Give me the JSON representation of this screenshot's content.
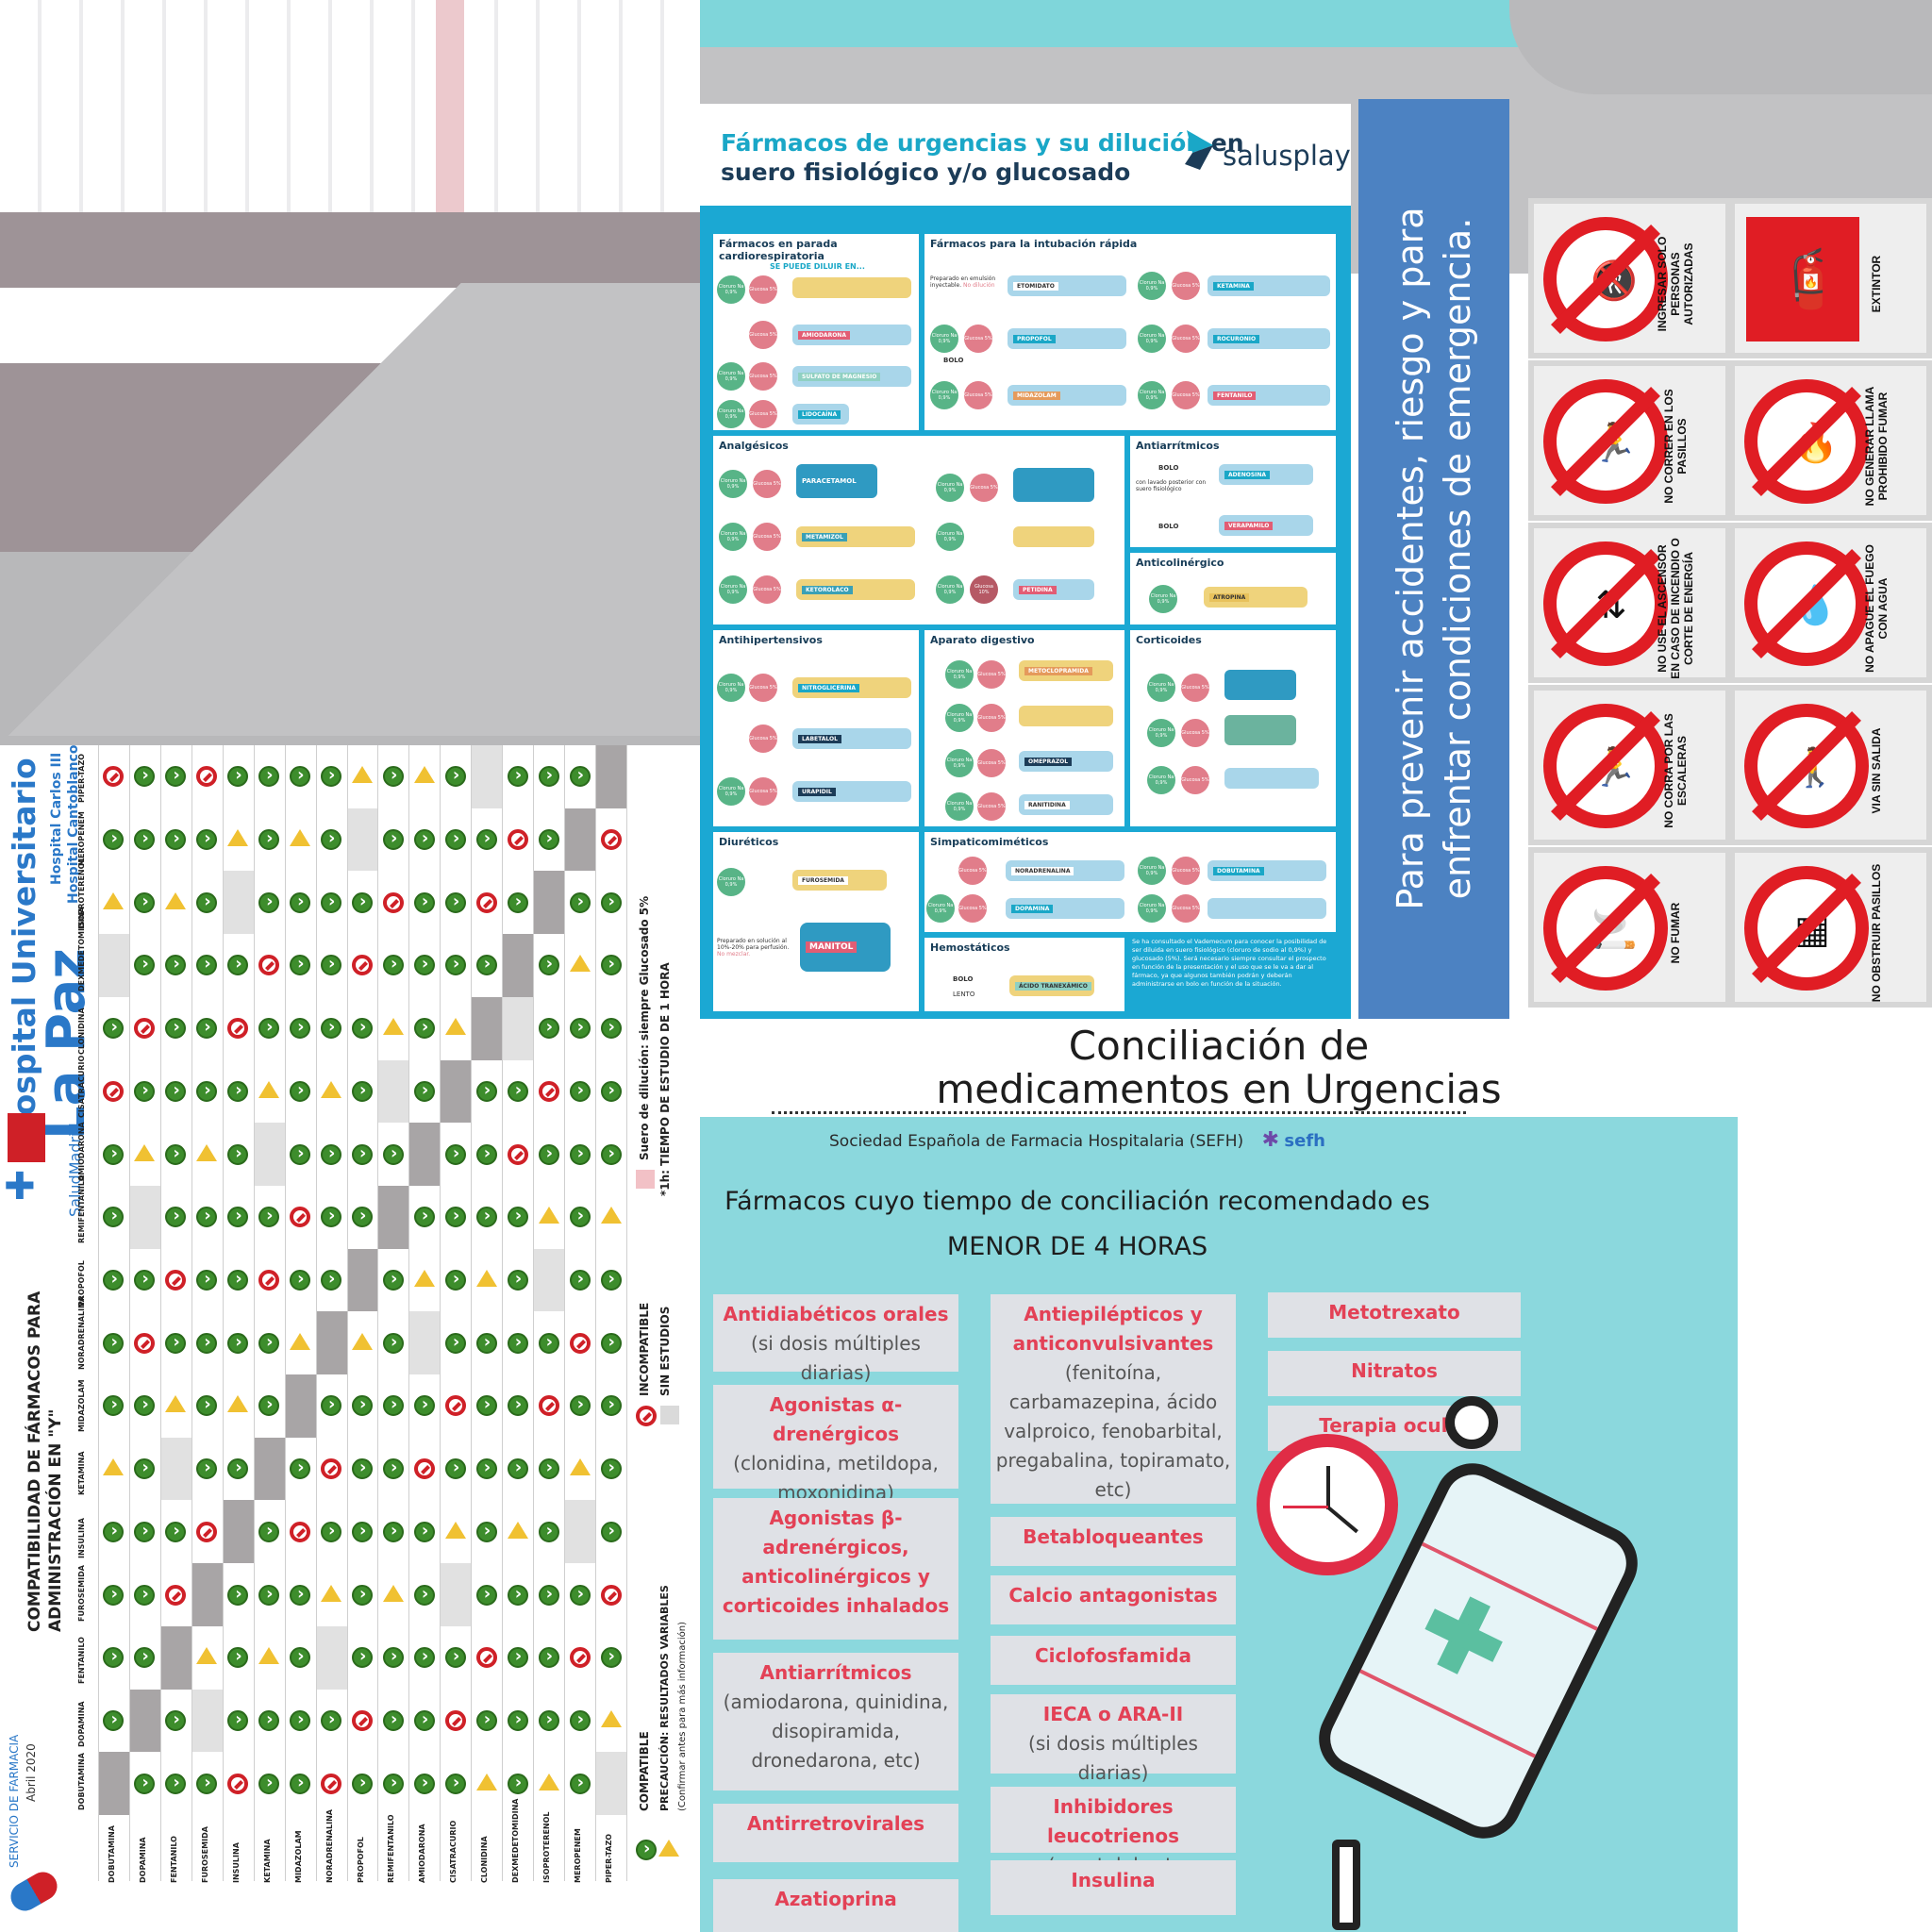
{
  "salusplay": {
    "title_part1": "Fármacos de urgencias y su dilución",
    "title_part2": " en",
    "title_line2": "suero fisiológico y/o glucosado",
    "logo": "salusplay",
    "sections": {
      "parada": "Fármacos en parada cardiorespiratoria",
      "parada_sub": "SE PUEDE DILUIR EN...",
      "intubacion": "Fármacos para la intubación rápida",
      "analgesicos": "Analgésicos",
      "antiarritmicos": "Antiarrítmicos",
      "anticolinergico": "Anticolinérgico",
      "antihipertensivos": "Antihipertensivos",
      "digestivo": "Aparato digestivo",
      "corticoides": "Corticoides",
      "diureticos": "Diuréticos",
      "simpaticomimeticos": "Simpaticomiméticos",
      "hemostaticos": "Hemostáticos"
    },
    "drugs": {
      "amiodarona": "AMIODARONA",
      "magnesio": "SULFATO DE MAGNESIO",
      "lidocaina": "LIDOCAÍNA",
      "etomidato": "ETOMIDATO",
      "ketamina": "KETAMINA",
      "propofol": "PROPOFOL",
      "rocuronio": "ROCURONIO",
      "midazolam": "MIDAZOLAM",
      "fentanilo": "FENTANILO",
      "paracetamol": "PARACETAMOL",
      "metamizol": "METAMIZOL",
      "ketorolaco": "KETOROLACO",
      "petidina": "PETIDINA",
      "adenosina": "ADENOSINA",
      "verapamilo": "VERAPAMILO",
      "atropina": "ATROPINA",
      "nitroglicerina": "NITROGLICERINA",
      "labetalol": "LABETALOL",
      "urapidil": "URAPIDIL",
      "metoclopramida": "METOCLOPRAMIDA",
      "omeprazol": "OMEPRAZOL",
      "ranitidina": "RANITIDINA",
      "furosemida": "FUROSEMIDA",
      "manitol": "MANITOL",
      "noradrenalina": "NORADRENALINA",
      "dobutamina": "DOBUTAMINA",
      "dopamina": "DOPAMINA",
      "tranexamico": "ÁCIDO TRANEXÁMICO"
    },
    "labels": {
      "cloruro": "Cloruro Na 0,9%",
      "glucosa": "Glucosa 5%",
      "glucosa10": "Glucosa 10%",
      "bolo": "BOLO",
      "lento": "LENTO",
      "emulsion": "Preparado en emulsión inyectable.",
      "no_dilucion": "No dilución",
      "lavado": "con lavado posterior con suero fisiológico",
      "manitol_note": "Preparado en solución al 10%-20% para perfusión.",
      "no_mezclar": "No mezclar.",
      "footnote": "Se ha consultado el Vademecum para conocer la posibilidad de ser diluida en suero fisiológico (cloruro de sodio al 0,9%) y glucosado (5%). Será necesario siempre consultar el prospecto en función de la presentación y el uso que se le va a dar al fármaco, ya que algunos también podrán y deberán administrarse en bolo en función de la situación."
    }
  },
  "banner": {
    "text": "Para prevenir accidentes, riesgo y para enfrentar condiciones de emergencia."
  },
  "signs": [
    {
      "label": "INGRESAR SOLO PERSONAS AUTORIZADAS",
      "glyph": "🚷"
    },
    {
      "label": "EXTINTOR",
      "glyph": "🧯"
    },
    {
      "label": "NO CORRER EN LOS PASILLOS",
      "glyph": "🏃"
    },
    {
      "label": "NO GENERAR LLAMA PROHIBIDO FUMAR",
      "glyph": "🔥"
    },
    {
      "label": "NO USE EL ASCENSOR EN CASO DE INCENDIO O CORTE DE ENERGÍA",
      "glyph": "⇅"
    },
    {
      "label": "NO APAGUE EL FUEGO CON AGUA",
      "glyph": "💧"
    },
    {
      "label": "NO CORRA POR LAS ESCALERAS",
      "glyph": "🏃"
    },
    {
      "label": "VIA SIN SALIDA",
      "glyph": "🚶"
    },
    {
      "label": "NO FUMAR",
      "glyph": "🚬"
    },
    {
      "label": "NO OBSTRUIR PASILLOS",
      "glyph": "▦"
    }
  ],
  "lapaz": {
    "hospital": "Hospital Universitario",
    "name": "La Paz",
    "sub1": "Hospital Carlos III",
    "sub2": "Hospital Cantoblanco",
    "salud": "SaludMadrid",
    "title_line1": "COMPATIBILIDAD DE FÁRMACOS PARA",
    "title_line2": "ADMINISTRACIÓN EN \"Y\"",
    "servicio": "SERVICIO DE FARMACIA",
    "fecha": "Abril 2020",
    "drugs": [
      "DOBUTAMINA",
      "DOPAMINA",
      "FENTANILO",
      "FUROSEMIDA",
      "INSULINA",
      "KETAMINA",
      "MIDAZOLAM",
      "NORADRENALINA",
      "PROPOFOL",
      "REMIFENTANILO",
      "AMIODARONA",
      "CISATRACURIO",
      "CLONIDINA",
      "DEXMEDETOMIDINA",
      "ISOPROTERENOL",
      "MEROPENEM",
      "PIPER-TAZO"
    ],
    "legend": {
      "dilucion": "Suero de dilución: siempre Glucosado 5%",
      "tiempo": "*1h: TIEMPO DE ESTUDIO DE 1 HORA",
      "incompatible": "INCOMPATIBLE",
      "sin_estudios": "SIN ESTUDIOS",
      "compatible": "COMPATIBLE",
      "precaucion": "PRECAUCIÓN: RESULTADOS VARIABLES",
      "confirmar": "(Confirmar antes para más información)"
    },
    "h1": "1h*"
  },
  "conciliacion": {
    "title": "Conciliación de medicamentos en Urgencias",
    "society": "Sociedad Española de Farmacia Hospitalaria (SEFH)",
    "sefh": "sefh",
    "lead1": "Fármacos cuyo tiempo de conciliación recomendado es",
    "lead2": "MENOR DE 4 HORAS",
    "col1": [
      {
        "t": "Antidiabéticos orales",
        "d": "(si dosis múltiples diarias)"
      },
      {
        "t": "Agonistas α-drenérgicos",
        "d": "(clonidina, metildopa, moxonidina)"
      },
      {
        "t": "Agonistas β-adrenérgicos, anticolinérgicos y corticoides inhalados",
        "d": ""
      },
      {
        "t": "Antiarrítmicos",
        "d": "(amiodarona, quinidina, disopiramida, dronedarona, etc)"
      },
      {
        "t": "Antirretrovirales",
        "d": ""
      },
      {
        "t": "Azatioprina",
        "d": ""
      }
    ],
    "col2": [
      {
        "t": "Antiepilépticos y anticonvulsivantes",
        "d": "(fenitoína, carbamazepina, ácido valproico, fenobarbital, pregabalina, topiramato, etc)"
      },
      {
        "t": "Betabloqueantes",
        "d": ""
      },
      {
        "t": "Calcio antagonistas",
        "d": ""
      },
      {
        "t": "Ciclofosfamida",
        "d": ""
      },
      {
        "t": "IECA o ARA-II",
        "d": "(si dosis múltiples diarias)"
      },
      {
        "t": "Inhibidores leucotrienos",
        "d": "(montelukast, zafirlukast)"
      },
      {
        "t": "Insulina",
        "d": ""
      }
    ],
    "col3": [
      {
        "t": "Metotrexato",
        "d": ""
      },
      {
        "t": "Nitratos",
        "d": ""
      },
      {
        "t": "Terapia ocular",
        "d": ""
      }
    ]
  }
}
